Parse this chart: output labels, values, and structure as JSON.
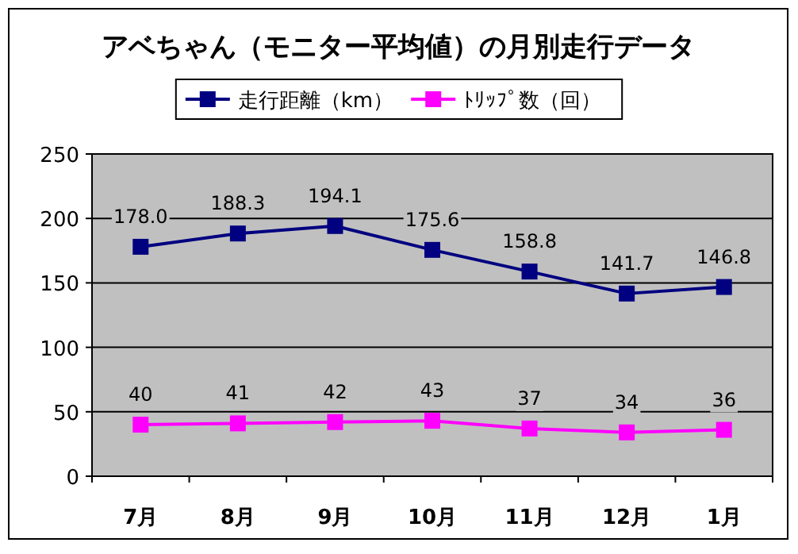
{
  "chart_data": {
    "type": "line",
    "title": "アベちゃん（モニター平均値）の月別走行データ",
    "categories": [
      "7月",
      "8月",
      "9月",
      "10月",
      "11月",
      "12月",
      "1月"
    ],
    "series": [
      {
        "name": "走行距離（km）",
        "color": "#000080",
        "values": [
          178.0,
          188.3,
          194.1,
          175.6,
          158.8,
          141.7,
          146.8
        ],
        "value_labels": [
          "178.0",
          "188.3",
          "194.1",
          "175.6",
          "158.8",
          "141.7",
          "146.8"
        ]
      },
      {
        "name": "ﾄﾘｯﾌﾟ数（回）",
        "color": "#ff00ff",
        "values": [
          40,
          41,
          42,
          43,
          37,
          34,
          36
        ],
        "value_labels": [
          "40",
          "41",
          "42",
          "43",
          "37",
          "34",
          "36"
        ]
      }
    ],
    "ylim": [
      0,
      250
    ],
    "yticks": [
      0,
      50,
      100,
      150,
      200,
      250
    ],
    "grid": "y",
    "legend": "top",
    "marker": "square"
  }
}
